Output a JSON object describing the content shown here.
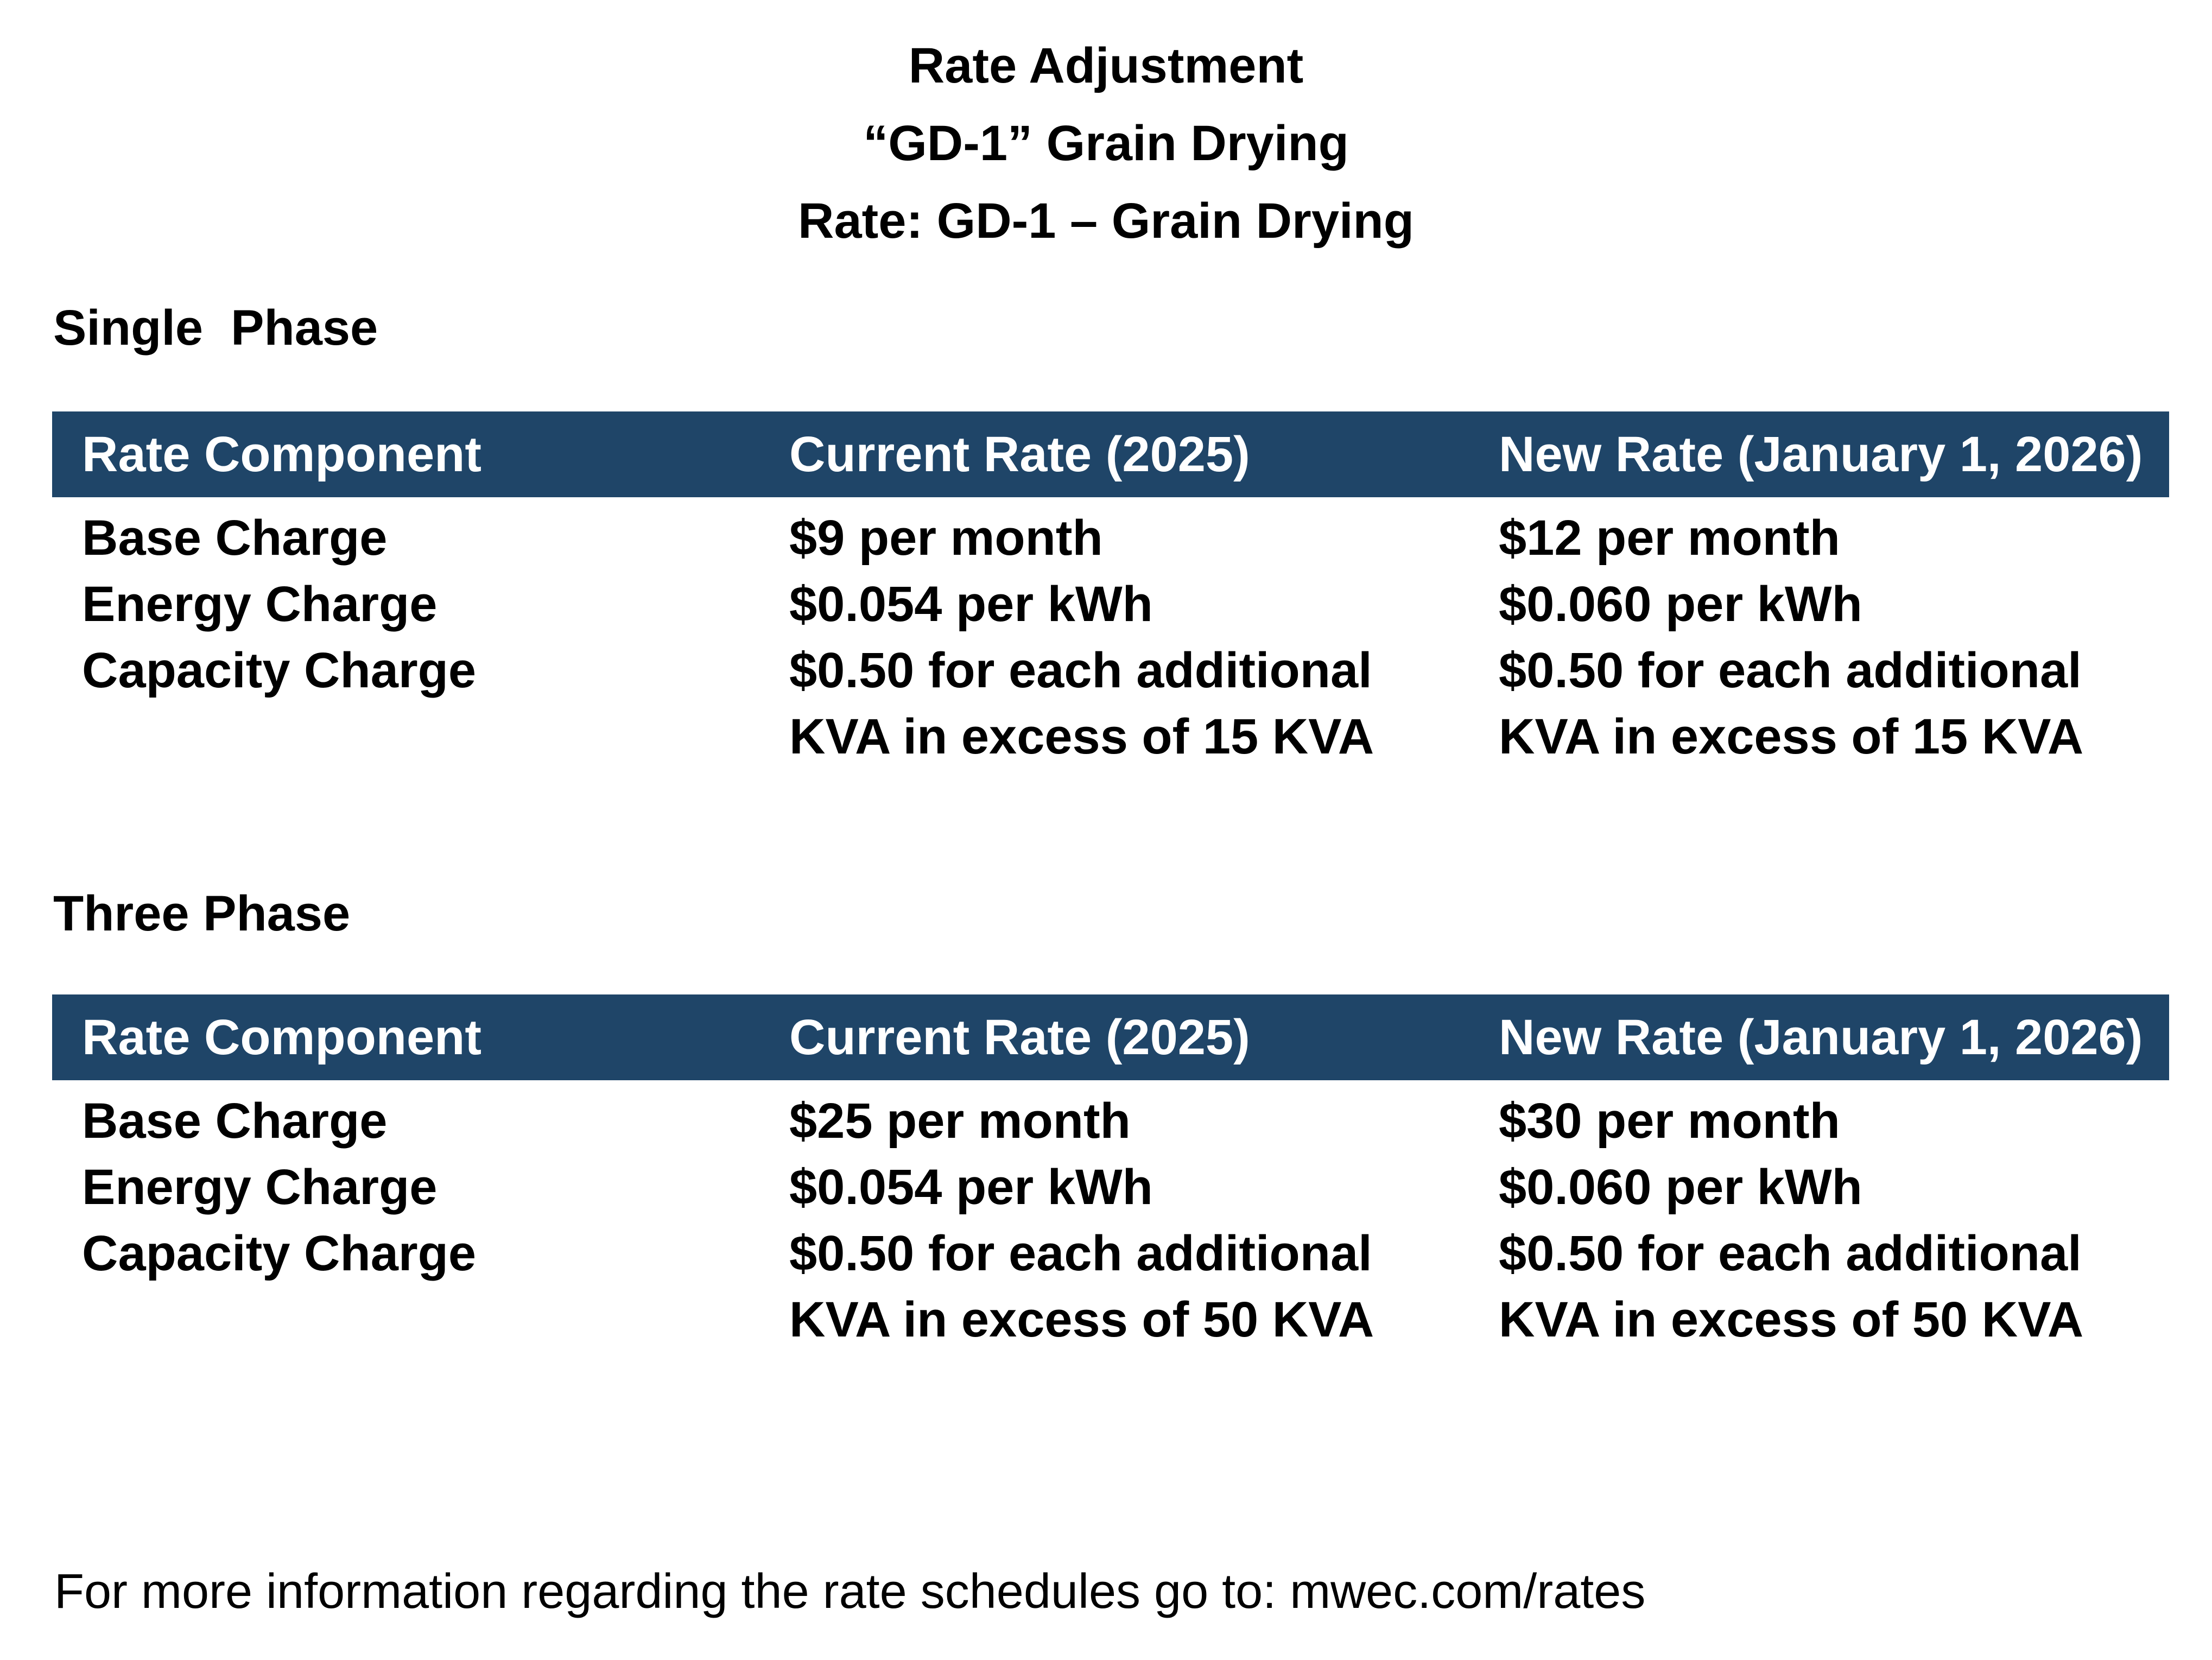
{
  "title": {
    "line1": "Rate Adjustment",
    "line2": "“GD-1” Grain Drying",
    "line3": "Rate: GD-1 – Grain Drying"
  },
  "colors": {
    "header_bg": "#1f4568",
    "header_text": "#ffffff",
    "body_text": "#000000",
    "page_bg": "#ffffff"
  },
  "sections": [
    {
      "heading": "Single  Phase",
      "table": {
        "columns": [
          "Rate Component",
          "Current Rate (2025)",
          "New Rate (January 1, 2026)"
        ],
        "rows": [
          [
            "Base Charge",
            "$9 per month",
            "$12 per month"
          ],
          [
            "Energy Charge",
            "$0.054 per kWh",
            "$0.060 per kWh"
          ],
          [
            "Capacity Charge",
            "$0.50 for each additional\nKVA in excess of 15 KVA",
            "$0.50 for each additional\nKVA in excess of 15 KVA"
          ]
        ]
      }
    },
    {
      "heading": "Three Phase",
      "table": {
        "columns": [
          "Rate Component",
          "Current Rate (2025)",
          "New Rate (January 1, 2026)"
        ],
        "rows": [
          [
            "Base Charge",
            "$25 per month",
            "$30 per month"
          ],
          [
            "Energy Charge",
            "$0.054 per kWh",
            "$0.060 per kWh"
          ],
          [
            "Capacity Charge",
            "$0.50 for each additional\nKVA in excess of 50 KVA",
            "$0.50 for each additional\nKVA in excess of 50 KVA"
          ]
        ]
      }
    }
  ],
  "footer": "For more information regarding the rate schedules go to: mwec.com/rates"
}
